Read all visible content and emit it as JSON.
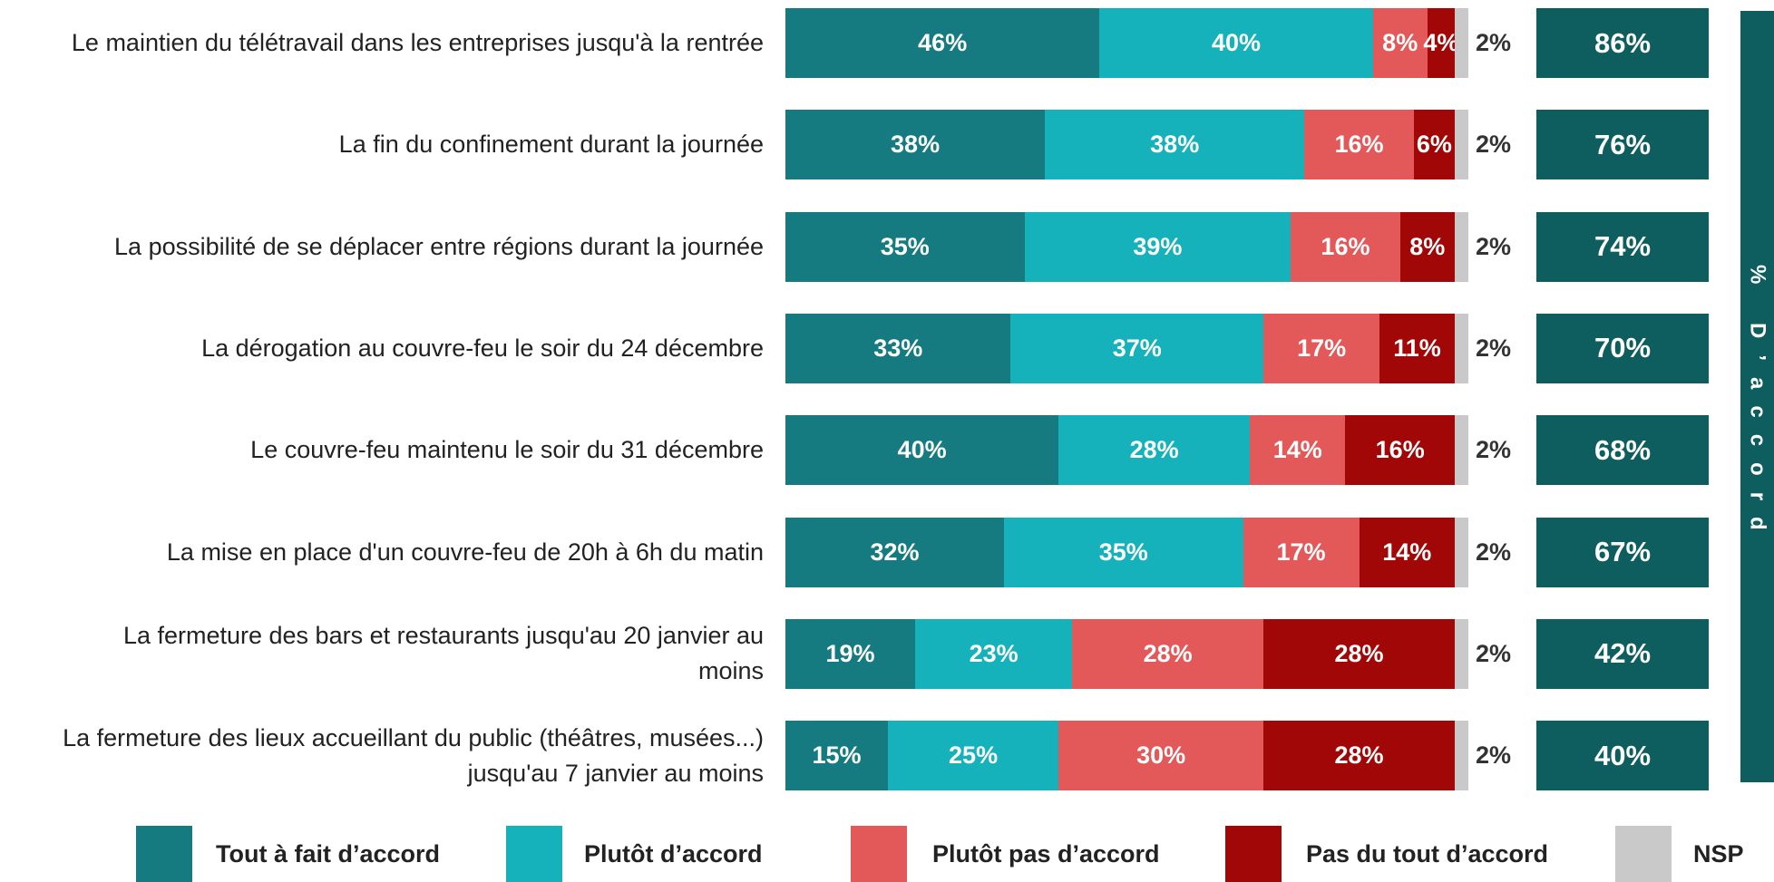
{
  "chart_data": {
    "type": "bar",
    "orientation": "horizontal",
    "stacked": true,
    "categories": [
      "Le maintien du télétravail dans les entreprises jusqu'à la rentrée",
      "La fin du confinement durant la journée",
      "La possibilité de se déplacer entre régions durant la journée",
      "La dérogation au couvre-feu le soir du 24 décembre",
      "Le couvre-feu maintenu le soir du 31 décembre",
      "La mise en place d'un couvre-feu de 20h à 6h du matin",
      "La fermeture des bars et restaurants jusqu'au 20 janvier au\nmoins",
      "La fermeture des lieux accueillant du public (théâtres, musées...)\njusqu'au 7 janvier au moins"
    ],
    "series": [
      {
        "name": "Tout à fait d’accord",
        "color": "#157b81",
        "values": [
          46,
          38,
          35,
          33,
          40,
          32,
          19,
          15
        ],
        "value_labels": [
          "46%",
          "38%",
          "35%",
          "33%",
          "40%",
          "32%",
          "19%",
          "15%"
        ]
      },
      {
        "name": "Plutôt d’accord",
        "color": "#16b2bb",
        "values": [
          40,
          38,
          39,
          37,
          28,
          35,
          23,
          25
        ],
        "value_labels": [
          "40%",
          "38%",
          "39%",
          "37%",
          "28%",
          "35%",
          "23%",
          "25%"
        ]
      },
      {
        "name": "Plutôt pas d’accord",
        "color": "#e35858",
        "values": [
          8,
          16,
          16,
          17,
          14,
          17,
          28,
          30
        ],
        "value_labels": [
          "8%",
          "16%",
          "16%",
          "17%",
          "14%",
          "17%",
          "28%",
          "30%"
        ]
      },
      {
        "name": "Pas du tout d’accord",
        "color": "#a10707",
        "values": [
          4,
          6,
          8,
          11,
          16,
          14,
          28,
          28
        ],
        "value_labels": [
          "4%",
          "6%",
          "8%",
          "11%",
          "16%",
          "14%",
          "28%",
          "28%"
        ]
      },
      {
        "name": "NSP",
        "color": "#c9c9c9",
        "values": [
          2,
          2,
          2,
          2,
          2,
          2,
          2,
          2
        ],
        "value_labels": [
          "2%",
          "2%",
          "2%",
          "2%",
          "2%",
          "2%",
          "2%",
          "2%"
        ]
      }
    ],
    "totals": {
      "name": "% D’accord",
      "color": "#0e5e60",
      "values": [
        86,
        76,
        74,
        70,
        68,
        67,
        42,
        40
      ],
      "value_labels": [
        "86%",
        "76%",
        "74%",
        "70%",
        "68%",
        "67%",
        "42%",
        "40%"
      ]
    }
  }
}
